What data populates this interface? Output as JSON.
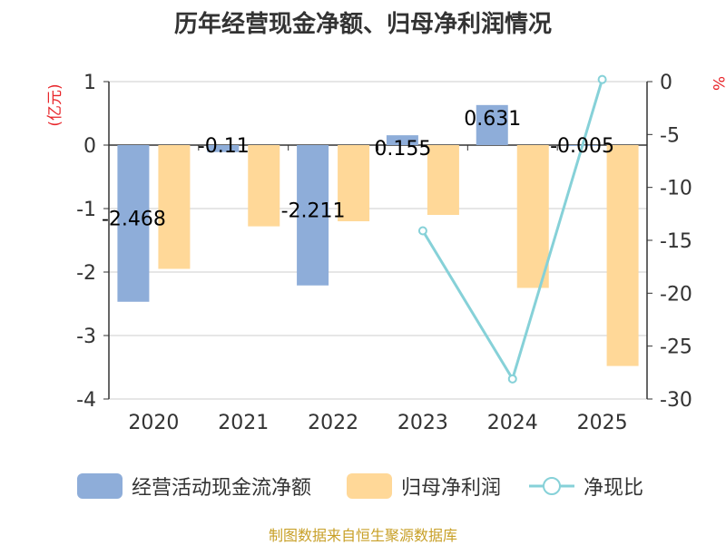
{
  "title": "历年经营现金净额、归母净利润情况",
  "footer": "制图数据来自恒生聚源数据库",
  "colors": {
    "cashflow": "#8eadd9",
    "profit": "#ffd898",
    "ratio": "#86d1d8",
    "axis": "#333333",
    "grid": "#cccccc",
    "unit": "#e8252a",
    "footer": "#c8a028"
  },
  "legend": {
    "cashflow": "经营活动现金流净额",
    "profit": "归母净利润",
    "ratio": "净现比"
  },
  "chart_data": {
    "type": "bar",
    "title": "历年经营现金净额、归母净利润情况",
    "categories": [
      "2020",
      "2021",
      "2022",
      "2023",
      "2024",
      "2025"
    ],
    "y_left": {
      "label": "(亿元)",
      "min": -4,
      "max": 1,
      "ticks": [
        "1",
        "0",
        "-1",
        "-2",
        "-3",
        "-4"
      ]
    },
    "y_right": {
      "label": "%",
      "min": -30,
      "max": 0,
      "ticks": [
        "0",
        "-5",
        "-10",
        "-15",
        "-20",
        "-25",
        "-30"
      ]
    },
    "series": [
      {
        "name": "经营活动现金流净额",
        "type": "bar",
        "axis": "left",
        "values": [
          -2.468,
          -0.11,
          -2.211,
          0.155,
          0.631,
          -0.005
        ],
        "labels": [
          "-2.468",
          "-0.11",
          "-2.211",
          "0.155",
          "0.631",
          "-0.005"
        ]
      },
      {
        "name": "归母净利润",
        "type": "bar",
        "axis": "left",
        "values": [
          -1.95,
          -1.28,
          -1.2,
          -1.1,
          -2.25,
          -3.48
        ]
      },
      {
        "name": "净现比",
        "type": "line",
        "axis": "right",
        "values": [
          null,
          null,
          null,
          -14.1,
          -28.1,
          0.2
        ]
      }
    ]
  }
}
